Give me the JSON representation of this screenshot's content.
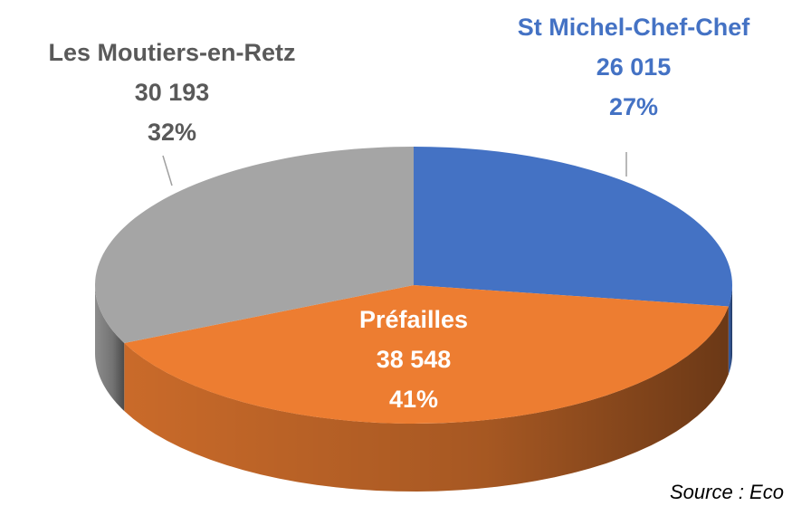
{
  "chart_data": {
    "type": "pie",
    "categories": [
      "St Michel-Chef-Chef",
      "Préfailles",
      "Les Moutiers-en-Retz"
    ],
    "values": [
      26015,
      38548,
      30193
    ],
    "value_labels": [
      "26 015",
      "38 548",
      "30 193"
    ],
    "percent_labels": [
      "27%",
      "41%",
      "32%"
    ],
    "colors": [
      "#4472c4",
      "#ed7d31",
      "#a5a5a5"
    ],
    "source": "Source : Eco"
  }
}
